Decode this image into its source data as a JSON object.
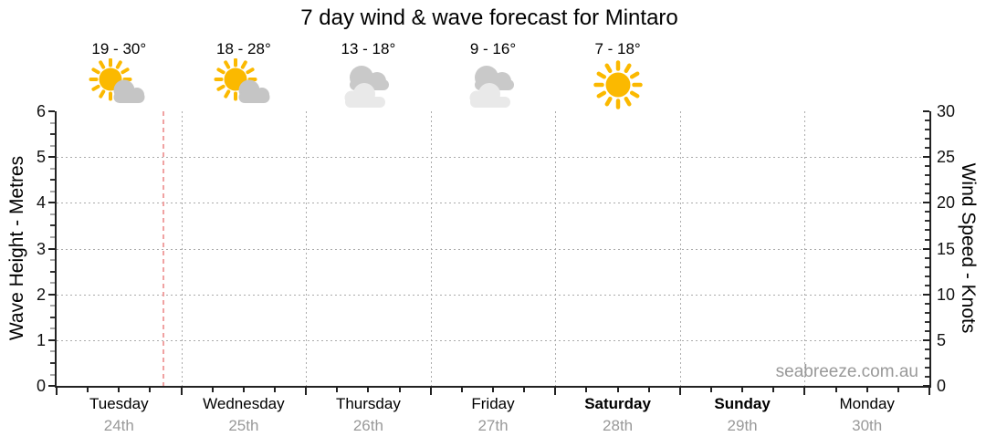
{
  "page": {
    "title": "7 day wind & wave forecast for Mintaro",
    "watermark": "seabreeze.com.au"
  },
  "forecast": {
    "days": [
      {
        "name": "Tuesday",
        "date": "24th",
        "bold": false,
        "temp_range": "19 - 30°",
        "icon": "sun-cloud-icon"
      },
      {
        "name": "Wednesday",
        "date": "25th",
        "bold": false,
        "temp_range": "18 - 28°",
        "icon": "sun-cloud-icon"
      },
      {
        "name": "Thursday",
        "date": "26th",
        "bold": false,
        "temp_range": "13 - 18°",
        "icon": "cloudy-icon"
      },
      {
        "name": "Friday",
        "date": "27th",
        "bold": false,
        "temp_range": "9 - 16°",
        "icon": "cloudy-icon"
      },
      {
        "name": "Saturday",
        "date": "28th",
        "bold": true,
        "temp_range": "7 - 18°",
        "icon": "sunny-icon"
      },
      {
        "name": "Sunday",
        "date": "29th",
        "bold": true,
        "temp_range": null,
        "icon": null
      },
      {
        "name": "Monday",
        "date": "30th",
        "bold": false,
        "temp_range": null,
        "icon": null
      }
    ]
  },
  "chart_data": {
    "type": "line",
    "title": "7 day wind & wave forecast for Mintaro",
    "x_axis": {
      "categories": [
        "Tuesday 24th",
        "Wednesday 25th",
        "Thursday 26th",
        "Friday 27th",
        "Saturday 28th",
        "Sunday 29th",
        "Monday 30th"
      ],
      "bold_categories": [
        "Saturday 28th",
        "Sunday 29th"
      ],
      "minor_ticks_per_day": 3
    },
    "y_axis_left": {
      "label": "Wave Height - Metres",
      "min": 0,
      "max": 6,
      "major_ticks": [
        0,
        1,
        2,
        3,
        4,
        5,
        6
      ],
      "minor_step": 0.25
    },
    "y_axis_right": {
      "label": "Wind Speed - Knots",
      "min": 0,
      "max": 30,
      "major_ticks": [
        0,
        5,
        10,
        15,
        20,
        25,
        30
      ],
      "minor_step": 1
    },
    "series": [],
    "plotted_data": "none - plot area is empty, forecast not yet graphed",
    "legend": "none",
    "gridlines": {
      "horizontal_at_metres": [
        1,
        2,
        3,
        4,
        5
      ],
      "vertical": "day boundaries",
      "style": "dotted"
    },
    "now_line": {
      "day_index": 0,
      "fraction_through_day": 0.85,
      "style": "dashed"
    }
  },
  "colors": {
    "sun": "#FBB900",
    "cloud_grey": "#C5C5C5",
    "cloud_back_grey": "#C9C9C9",
    "cloud_light_grey": "#E9E9E9",
    "now_line": "#F0A2A2",
    "grid": "#ABABAB",
    "axis": "#222222",
    "minor_tick_grey": "#A8A8A8",
    "date_text": "#999999",
    "watermark_text": "#999999"
  }
}
